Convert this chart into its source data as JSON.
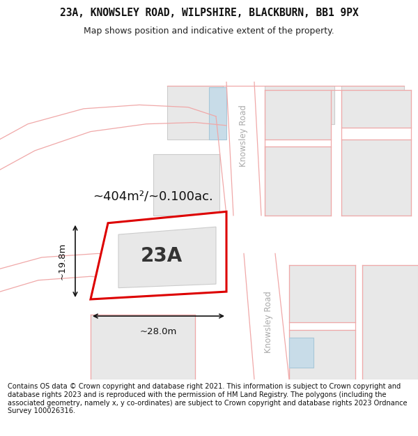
{
  "title_line1": "23A, KNOWSLEY ROAD, WILPSHIRE, BLACKBURN, BB1 9PX",
  "title_line2": "Map shows position and indicative extent of the property.",
  "footer_text": "Contains OS data © Crown copyright and database right 2021. This information is subject to Crown copyright and database rights 2023 and is reproduced with the permission of HM Land Registry. The polygons (including the associated geometry, namely x, y co-ordinates) are subject to Crown copyright and database rights 2023 Ordnance Survey 100026316.",
  "area_text": "~404m²/~0.100ac.",
  "label_23A": "23A",
  "dim_width": "~28.0m",
  "dim_height": "~19.8m",
  "road_label": "Knowsley Road",
  "map_bg": "#ffffff",
  "road_line_color": "#f0a8a8",
  "building_fill": "#e8e8e8",
  "building_edge": "#cccccc",
  "highlight_fill": "#e8e8e8",
  "highlight_edge": "#dd0000",
  "blue_fill": "#c8dce8",
  "text_dim_color": "#111111",
  "road_text_color": "#aaaaaa",
  "title_fontsize": 10.5,
  "footer_fontsize": 7.2,
  "area_fontsize": 14
}
